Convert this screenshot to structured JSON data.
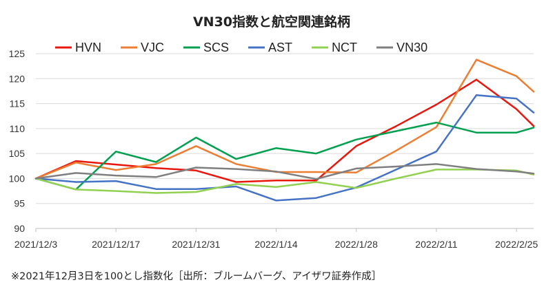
{
  "chart_data": {
    "type": "line",
    "title": "VN30指数と航空関連銘柄",
    "note": "※2021年12月3日を100とし指数化［出所：ブルームバーグ、アイザワ証券作成］",
    "legend_position": "top",
    "grid": "horizontal",
    "ylim": [
      90,
      125
    ],
    "yticks": [
      90,
      95,
      100,
      105,
      110,
      115,
      120,
      125
    ],
    "xlim": [
      "2021-12-03",
      "2022-02-28"
    ],
    "xticks": [
      {
        "date": "2021-12-03",
        "label": "2021/12/3"
      },
      {
        "date": "2021-12-17",
        "label": "2021/12/17"
      },
      {
        "date": "2021-12-31",
        "label": "2021/12/31"
      },
      {
        "date": "2022-01-14",
        "label": "2022/1/14"
      },
      {
        "date": "2022-01-28",
        "label": "2022/1/28"
      },
      {
        "date": "2022-02-11",
        "label": "2022/2/11"
      },
      {
        "date": "2022-02-25",
        "label": "2022/2/25"
      }
    ],
    "x": [
      "2021-12-03",
      "2021-12-10",
      "2021-12-17",
      "2021-12-24",
      "2021-12-31",
      "2022-01-07",
      "2022-01-14",
      "2022-01-21",
      "2022-01-28",
      "2022-02-04",
      "2022-02-11",
      "2022-02-18",
      "2022-02-25",
      "2022-02-28"
    ],
    "series": [
      {
        "name": "HVN",
        "color": "#e8160d",
        "values": [
          100,
          103.5,
          102.8,
          102.1,
          101.6,
          99.3,
          99.6,
          99.6,
          106.5,
          110.5,
          114.8,
          119.8,
          113.9,
          110.5
        ]
      },
      {
        "name": "VJC",
        "color": "#ed7d31",
        "values": [
          100,
          103.2,
          101.7,
          102.9,
          106.5,
          102.9,
          101.3,
          101.3,
          101.2,
          105.6,
          110.3,
          123.8,
          120.5,
          117.4
        ]
      },
      {
        "name": "SCS",
        "color": "#00a04f",
        "values": [
          100,
          97.8,
          105.4,
          103.3,
          108.2,
          103.9,
          106.1,
          105.0,
          107.8,
          109.5,
          111.2,
          109.2,
          109.2,
          110.2
        ]
      },
      {
        "name": "AST",
        "color": "#4472c4",
        "values": [
          100,
          99.3,
          99.5,
          97.9,
          97.9,
          98.4,
          95.6,
          96.1,
          98.2,
          101.8,
          105.4,
          116.7,
          116.0,
          113.2
        ]
      },
      {
        "name": "NCT",
        "color": "#92d050",
        "values": [
          100,
          97.8,
          97.5,
          97.1,
          97.3,
          98.9,
          98.3,
          99.3,
          98.1,
          100.0,
          101.8,
          101.8,
          101.6,
          100.8
        ]
      },
      {
        "name": "VN30",
        "color": "#7f7f7f",
        "values": [
          100,
          101.1,
          100.6,
          100.3,
          102.2,
          101.9,
          101.4,
          99.9,
          102.0,
          102.4,
          102.9,
          101.9,
          101.4,
          101.0
        ]
      }
    ]
  }
}
